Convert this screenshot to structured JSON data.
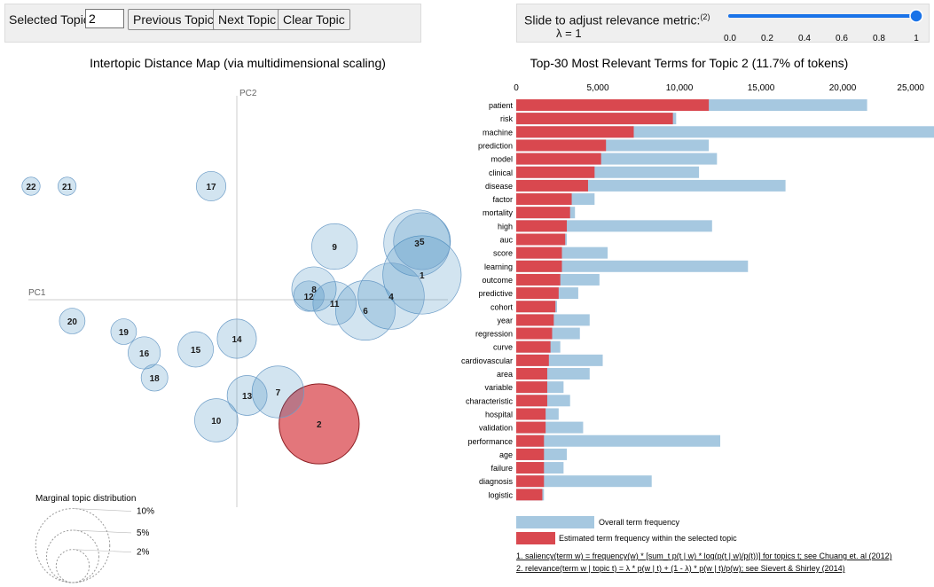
{
  "controls": {
    "selected_topic_label": "Selected Topic:",
    "selected_topic_value": "2",
    "previous_label": "Previous Topic",
    "next_label": "Next Topic",
    "clear_label": "Clear Topic",
    "lambda_label": "Slide to adjust relevance metric:",
    "lambda_footnote": "(2)",
    "lambda_value_text": "λ = 1",
    "lambda_value": 1,
    "slider_ticks": [
      "0.0",
      "0.2",
      "0.4",
      "0.6",
      "0.8",
      "1"
    ]
  },
  "mds": {
    "title": "Intertopic Distance Map (via multidimensional scaling)",
    "pc1_label": "PC1",
    "pc2_label": "PC2",
    "legend_title": "Marginal topic distribution",
    "legend_levels": [
      "2%",
      "5%",
      "10%"
    ],
    "selected_topic": "2",
    "topics": [
      {
        "id": "1",
        "x": 3.6,
        "y": 0.7,
        "size": 11.2
      },
      {
        "id": "9",
        "x": 1.9,
        "y": 1.5,
        "size": 3.8
      },
      {
        "id": "3",
        "x": 3.5,
        "y": 1.6,
        "size": 8.0
      },
      {
        "id": "5",
        "x": 3.6,
        "y": 1.65,
        "size": 5.9
      },
      {
        "id": "22",
        "x": -4.0,
        "y": 3.2,
        "size": 0.6
      },
      {
        "id": "21",
        "x": -3.3,
        "y": 3.2,
        "size": 0.6
      },
      {
        "id": "17",
        "x": -0.5,
        "y": 3.2,
        "size": 1.6
      },
      {
        "id": "8",
        "x": 1.5,
        "y": 0.3,
        "size": 3.6
      },
      {
        "id": "12",
        "x": 1.4,
        "y": 0.1,
        "size": 1.7
      },
      {
        "id": "11",
        "x": 1.9,
        "y": -0.1,
        "size": 3.4
      },
      {
        "id": "4",
        "x": 3.0,
        "y": 0.1,
        "size": 8.0
      },
      {
        "id": "6",
        "x": 2.5,
        "y": -0.3,
        "size": 6.5
      },
      {
        "id": "20",
        "x": -3.2,
        "y": -0.6,
        "size": 1.2
      },
      {
        "id": "19",
        "x": -2.2,
        "y": -0.9,
        "size": 1.2
      },
      {
        "id": "14",
        "x": 0.0,
        "y": -1.1,
        "size": 2.8
      },
      {
        "id": "16",
        "x": -1.8,
        "y": -1.5,
        "size": 1.9
      },
      {
        "id": "15",
        "x": -0.8,
        "y": -1.4,
        "size": 2.3
      },
      {
        "id": "18",
        "x": -1.6,
        "y": -2.2,
        "size": 1.3
      },
      {
        "id": "13",
        "x": 0.2,
        "y": -2.7,
        "size": 2.9
      },
      {
        "id": "7",
        "x": 0.8,
        "y": -2.6,
        "size": 4.9
      },
      {
        "id": "10",
        "x": -0.4,
        "y": -3.4,
        "size": 3.4
      },
      {
        "id": "2",
        "x": 1.6,
        "y": -3.5,
        "size": 11.7
      }
    ]
  },
  "chart_data": {
    "type": "bar",
    "title": "Top-30 Most Relevant Terms for Topic 2 (11.7% of tokens)",
    "xlim": [
      0,
      25000
    ],
    "xticks": [
      0,
      5000,
      10000,
      15000,
      20000,
      25000
    ],
    "xtick_labels": [
      "0",
      "5,000",
      "10,000",
      "15,000",
      "20,000",
      "25,000"
    ],
    "terms": [
      "patient",
      "risk",
      "machine",
      "prediction",
      "model",
      "clinical",
      "disease",
      "factor",
      "mortality",
      "high",
      "auc",
      "score",
      "learning",
      "outcome",
      "predictive",
      "cohort",
      "year",
      "regression",
      "curve",
      "cardiovascular",
      "area",
      "variable",
      "characteristic",
      "hospital",
      "validation",
      "performance",
      "age",
      "failure",
      "diagnosis",
      "logistic"
    ],
    "series": [
      {
        "name": "Overall term frequency",
        "color": "#a6c8e0",
        "values": [
          21500,
          9800,
          25600,
          11800,
          12300,
          11200,
          16500,
          4800,
          3600,
          12000,
          3100,
          5600,
          14200,
          5100,
          3800,
          2500,
          4500,
          3900,
          2700,
          5300,
          4500,
          2900,
          3300,
          2600,
          4100,
          12500,
          3100,
          2900,
          8300,
          1700
        ]
      },
      {
        "name": "Estimated term frequency within the selected topic",
        "color": "#d9484f",
        "values": [
          11800,
          9600,
          7200,
          5500,
          5200,
          4800,
          4400,
          3400,
          3300,
          3100,
          3000,
          2800,
          2800,
          2700,
          2600,
          2400,
          2300,
          2200,
          2100,
          2000,
          1900,
          1900,
          1900,
          1800,
          1800,
          1700,
          1700,
          1700,
          1700,
          1600
        ]
      }
    ],
    "legend": [
      "Overall term frequency",
      "Estimated term  frequency within the selected topic"
    ],
    "footnotes": [
      "1. saliency(term  w) = frequency(w) * [sum_t p(t | w) * log(p(t | w)/p(t))] for topics t; see Chuang et. al (2012)",
      "2. relevance(term  w | topic t) = λ * p(w | t) + (1 - λ) * p(w | t)/p(w); see Sievert & Shirley (2014)"
    ]
  }
}
